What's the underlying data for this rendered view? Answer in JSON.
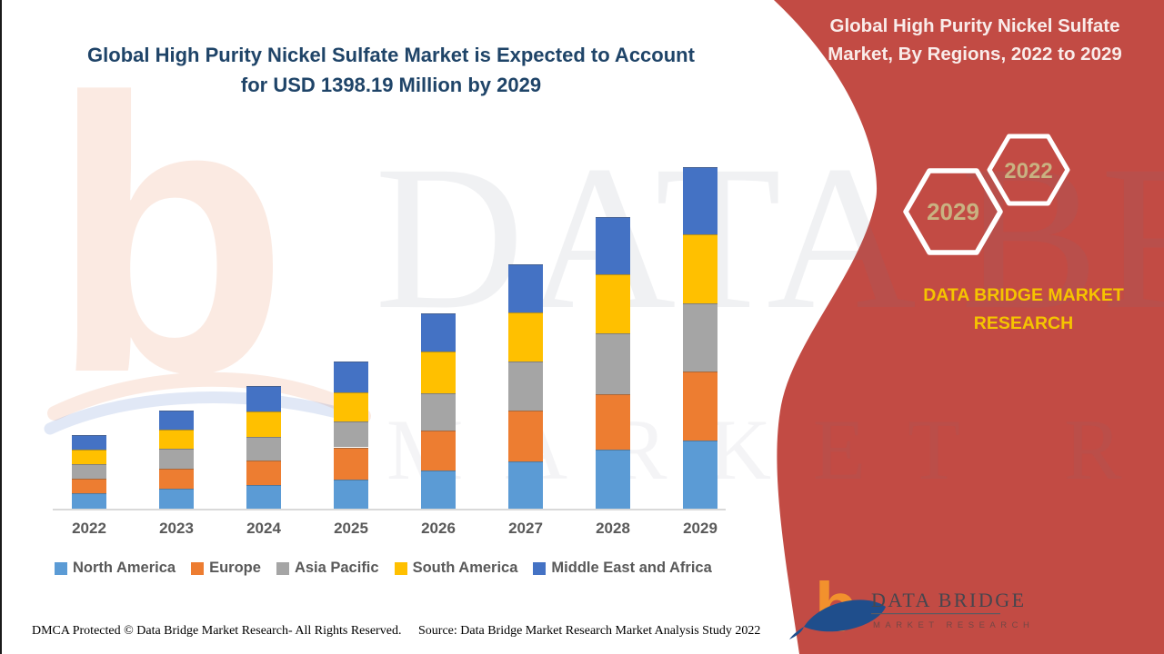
{
  "header": {
    "lines": [
      "Global High Purity Nickel Sulfate Market is Expected to Account",
      "for USD 1398.19 Million by 2029"
    ]
  },
  "panel": {
    "background_color": "#c24b44",
    "title_lines": [
      "Global High Purity Nickel Sulfate",
      "Market, By Regions, 2022 to 2029"
    ],
    "hex_front_label": "2029",
    "hex_back_label": "2022",
    "hex_text_color": "#c9b281",
    "brand_text": "DATA BRIDGE MARKET RESEARCH",
    "brand_gold_color": "#f5c400",
    "logo_glyph": "b",
    "logo_title": "DATA BRIDGE",
    "logo_subtitle": "MARKET RESEARCH"
  },
  "watermarks": {
    "big_letter": "b",
    "text_line_1": "DATA BRIDGE",
    "text_line_2": "MARKET RESEARCH"
  },
  "footer": {
    "left": "DMCA Protected © Data Bridge Market Research- All Rights Reserved.",
    "right": "Source: Data Bridge Market Research Market Analysis Study 2022"
  },
  "chart_data": {
    "type": "bar",
    "stacked": true,
    "title": "Global High Purity Nickel Sulfate Market is Expected to Account for USD 1398.19 Million by 2029",
    "unit": "USD Million",
    "categories": [
      "2022",
      "2023",
      "2024",
      "2025",
      "2026",
      "2027",
      "2028",
      "2029"
    ],
    "series": [
      {
        "name": "North America",
        "color": "#5b9bd5",
        "values": [
          62,
          80,
          97,
          119,
          157,
          194,
          242,
          280
        ]
      },
      {
        "name": "Europe",
        "color": "#ed7d31",
        "values": [
          60,
          82,
          100,
          132,
          164,
          209,
          227,
          280
        ]
      },
      {
        "name": "Asia Pacific",
        "color": "#a5a5a5",
        "values": [
          60,
          82,
          97,
          107,
          153,
          201,
          250,
          280
        ]
      },
      {
        "name": "South America",
        "color": "#ffc000",
        "values": [
          60,
          78,
          104,
          119,
          168,
          198,
          239,
          283
        ]
      },
      {
        "name": "Middle East and Africa",
        "color": "#4472c4",
        "values": [
          60,
          81,
          105,
          127,
          156,
          197,
          235,
          275.19
        ]
      }
    ],
    "totals_estimated": [
      302,
      403,
      503,
      604,
      798,
      999,
      1193,
      1398.19
    ],
    "highlight_value": "USD 1398.19 Million by 2029",
    "y_axis_visible": false,
    "grid": false,
    "legend_position": "bottom",
    "xlabel": "",
    "ylabel": ""
  }
}
